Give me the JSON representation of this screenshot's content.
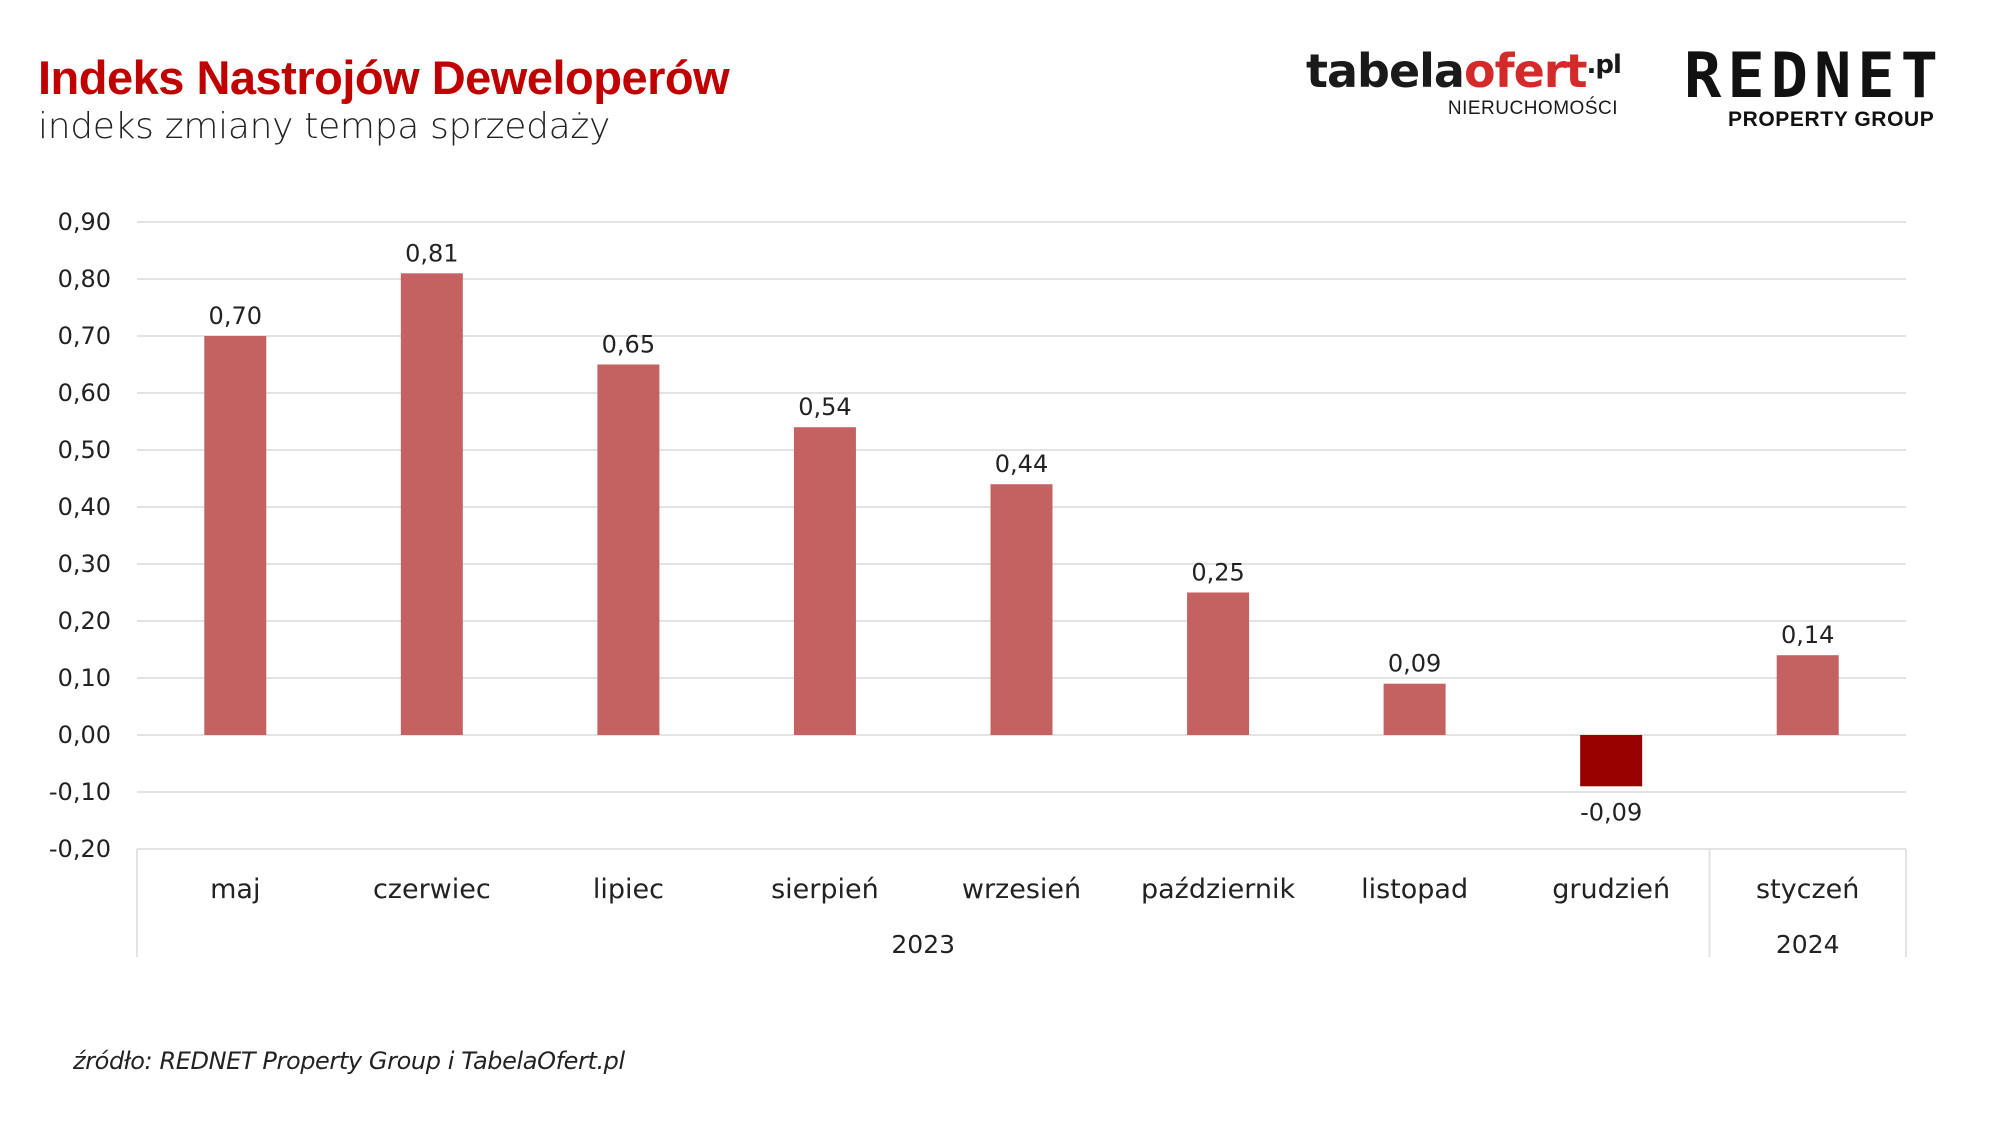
{
  "header": {
    "title": "Indeks Nastrojów Deweloperów",
    "subtitle": "indeks zmiany tempa sprzedaży"
  },
  "logos": {
    "tabelaofert": {
      "dark_part": "tabela",
      "red_part": "ofert",
      "suffix": ".pl",
      "tagline": "NIERUCHOMOŚCI"
    },
    "rednet": {
      "name": "REDNET",
      "tagline": "PROPERTY GROUP"
    }
  },
  "footer": {
    "source": "źródło: REDNET Property Group i TabelaOfert.pl"
  },
  "colors": {
    "title": "#c00000",
    "bar_positive": "#c46262",
    "bar_negative": "#990000",
    "gridline": "#e3e3e3"
  },
  "chart_data": {
    "type": "bar",
    "title": "Indeks Nastrojów Deweloperów",
    "subtitle": "indeks zmiany tempa sprzedaży",
    "xlabel": "",
    "ylabel": "",
    "categories": [
      "maj",
      "czerwiec",
      "lipiec",
      "sierpień",
      "wrzesień",
      "październik",
      "listopad",
      "grudzień",
      "styczeń"
    ],
    "category_groups": [
      {
        "label": "2023",
        "span": 8
      },
      {
        "label": "2024",
        "span": 1
      }
    ],
    "values": [
      0.7,
      0.81,
      0.65,
      0.54,
      0.44,
      0.25,
      0.09,
      -0.09,
      0.14
    ],
    "value_labels": [
      "0,70",
      "0,81",
      "0,65",
      "0,54",
      "0,44",
      "0,25",
      "0,09",
      "-0,09",
      "0,14"
    ],
    "ylim": [
      -0.2,
      0.9
    ],
    "yticks": [
      0.9,
      0.8,
      0.7,
      0.6,
      0.5,
      0.4,
      0.3,
      0.2,
      0.1,
      0.0,
      -0.1,
      -0.2
    ],
    "ytick_labels": [
      "0,90",
      "0,80",
      "0,70",
      "0,60",
      "0,50",
      "0,40",
      "0,30",
      "0,20",
      "0,10",
      "0,00",
      "-0,10",
      "-0,20"
    ],
    "grid": true,
    "legend": null
  }
}
